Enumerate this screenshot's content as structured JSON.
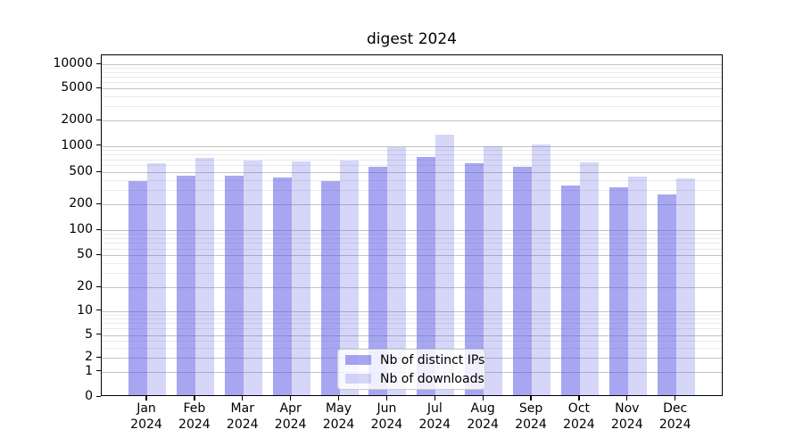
{
  "chart_data": {
    "type": "bar",
    "title": "digest 2024",
    "categories": [
      "Jan",
      "Feb",
      "Mar",
      "Apr",
      "May",
      "Jun",
      "Jul",
      "Aug",
      "Sep",
      "Oct",
      "Nov",
      "Dec"
    ],
    "year_label": "2024",
    "series": [
      {
        "name": "Nb of distinct IPs",
        "color": "rgba(84,84,228,0.52)",
        "values": [
          370,
          430,
          430,
          405,
          370,
          555,
          720,
          600,
          550,
          325,
          310,
          255
        ]
      },
      {
        "name": "Nb of downloads",
        "color": "rgba(84,84,228,0.24)",
        "values": [
          600,
          690,
          650,
          630,
          650,
          915,
          1290,
          940,
          1000,
          620,
          415,
          400
        ]
      }
    ],
    "yscale": "symlog",
    "ylim": [
      0,
      13000
    ],
    "yticks": [
      0,
      1,
      2,
      5,
      10,
      20,
      50,
      100,
      200,
      500,
      1000,
      2000,
      5000,
      10000
    ],
    "grid": "on",
    "grid_major_color": "#c3c3c3",
    "grid_minor_color": "#e9e9e9",
    "legend_location": "lower center",
    "background": "#ffffff"
  }
}
